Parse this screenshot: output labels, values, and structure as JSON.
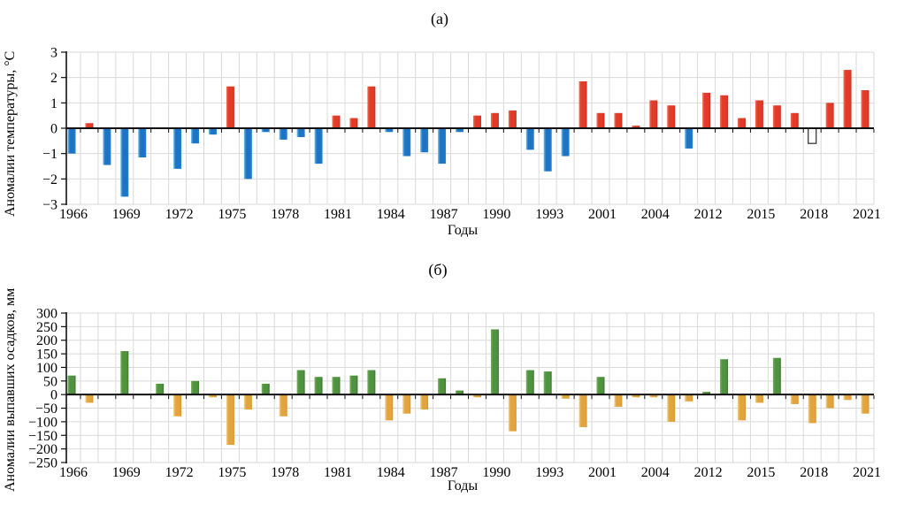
{
  "figure": {
    "grid_color": "#d9d9d9",
    "axis_color": "#111111",
    "text_color": "#000000",
    "background": "#ffffff"
  },
  "chart_data": [
    {
      "id": "temp",
      "type": "bar",
      "panel_label": "(а)",
      "ylabel": "Аномалии температуры, °С",
      "xlabel": "Годы",
      "ylim": [
        -3,
        3
      ],
      "yticks": [
        3,
        2,
        1,
        0,
        -1,
        -2,
        -3
      ],
      "x_label_every": 3,
      "x_tick_labels": [
        "1966",
        "1969",
        "1972",
        "1975",
        "1978",
        "1981",
        "1984",
        "1987",
        "1990",
        "1993",
        "2001",
        "2004",
        "2012",
        "2015",
        "2018",
        "2021"
      ],
      "categories": [
        1966,
        1967,
        1968,
        1969,
        1970,
        1971,
        1972,
        1973,
        1974,
        1975,
        1976,
        1977,
        1978,
        1979,
        1980,
        1981,
        1982,
        1983,
        1984,
        1985,
        1986,
        1987,
        1988,
        1989,
        1990,
        1991,
        1992,
        1993,
        1994,
        1995,
        2001,
        2002,
        2003,
        2004,
        2005,
        2006,
        2012,
        2013,
        2014,
        2015,
        2016,
        2017,
        2018,
        2019,
        2020,
        2021
      ],
      "values": [
        -1.0,
        0.2,
        -1.45,
        -2.7,
        -1.15,
        null,
        -1.6,
        -0.6,
        -0.25,
        1.65,
        -2.0,
        -0.15,
        -0.45,
        -0.35,
        -1.4,
        0.5,
        0.4,
        1.65,
        -0.15,
        -1.1,
        -0.95,
        -1.4,
        -0.15,
        0.5,
        0.6,
        0.7,
        -0.85,
        -1.7,
        -1.1,
        1.85,
        0.6,
        0.6,
        0.1,
        1.1,
        0.9,
        -0.8,
        1.4,
        1.3,
        0.4,
        1.1,
        0.9,
        0.6,
        -0.6,
        1.0,
        2.3,
        1.5
      ],
      "bar_style": {
        "positive": {
          "core": "#e23b28",
          "light_edge": "#ef7258",
          "dark_edge": "#c43120"
        },
        "negative": {
          "core": "#1e74c4",
          "light_edge": "#74bde8",
          "dark_edge": "#2a80cc"
        }
      },
      "outlined": {
        "year": 2018,
        "fill": "#ffffff",
        "stroke": "#3a3a3a"
      }
    },
    {
      "id": "precip",
      "type": "bar",
      "panel_label": "(б)",
      "ylabel": "Аномалии выпавших осадков, мм",
      "xlabel": "Годы",
      "ylim": [
        -250,
        300
      ],
      "yticks": [
        300,
        250,
        200,
        150,
        100,
        50,
        0,
        -50,
        -100,
        -150,
        -200,
        -250
      ],
      "x_label_every": 3,
      "x_tick_labels": [
        "1966",
        "1969",
        "1972",
        "1975",
        "1978",
        "1981",
        "1984",
        "1987",
        "1990",
        "1993",
        "2001",
        "2004",
        "2012",
        "2015",
        "2018",
        "2021"
      ],
      "categories": [
        1966,
        1967,
        1968,
        1969,
        1970,
        1971,
        1972,
        1973,
        1974,
        1975,
        1976,
        1977,
        1978,
        1979,
        1980,
        1981,
        1982,
        1983,
        1984,
        1985,
        1986,
        1987,
        1988,
        1989,
        1990,
        1991,
        1992,
        1993,
        1994,
        1995,
        2001,
        2002,
        2003,
        2004,
        2005,
        2006,
        2012,
        2013,
        2014,
        2015,
        2016,
        2017,
        2018,
        2019,
        2020,
        2021
      ],
      "values": [
        70,
        -30,
        null,
        160,
        null,
        40,
        -80,
        50,
        -10,
        -185,
        -55,
        40,
        -80,
        90,
        65,
        65,
        70,
        90,
        -95,
        -70,
        -55,
        60,
        15,
        -10,
        240,
        -135,
        90,
        85,
        -15,
        -120,
        65,
        -45,
        -10,
        -10,
        -100,
        -25,
        10,
        130,
        -95,
        -30,
        135,
        -35,
        -105,
        -50,
        -20,
        -70
      ],
      "bar_style": {
        "positive": {
          "core": "#4f9340",
          "light_edge": "#79af5c",
          "dark_edge": "#3c7630"
        },
        "negative": {
          "core": "#e2a43d",
          "light_edge": "#f2cf8d",
          "dark_edge": "#d9952f"
        }
      },
      "outlined": null
    }
  ]
}
